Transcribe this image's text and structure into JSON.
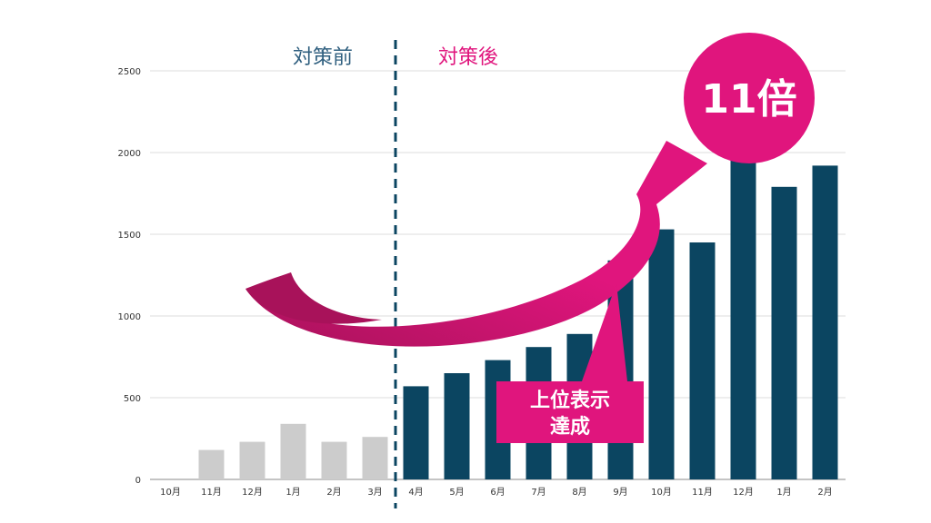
{
  "chart_data": {
    "type": "bar",
    "categories": [
      "10月",
      "11月",
      "12月",
      "1月",
      "2月",
      "3月",
      "4月",
      "5月",
      "6月",
      "7月",
      "8月",
      "9月",
      "10月",
      "11月",
      "12月",
      "1月",
      "2月"
    ],
    "values": [
      0,
      180,
      230,
      340,
      230,
      260,
      570,
      650,
      730,
      810,
      890,
      1340,
      1530,
      1450,
      1990,
      1790,
      1920
    ],
    "series_groups": [
      {
        "label": "対策前",
        "start": 0,
        "end": 5,
        "color": "#cccccc"
      },
      {
        "label": "対策後",
        "start": 6,
        "end": 16,
        "color": "#0b4561"
      }
    ],
    "yticks": [
      0,
      500,
      1000,
      1500,
      2000,
      2500
    ],
    "ylim": [
      0,
      2500
    ],
    "grid": true,
    "title": "",
    "xlabel": "",
    "ylabel": ""
  },
  "annotations": {
    "before_label": "対策前",
    "after_label": "対策後",
    "multiplier": "11倍",
    "callout_line1": "上位表示",
    "callout_line2": "達成"
  },
  "colors": {
    "before": "#cccccc",
    "after": "#0b4561",
    "before_text": "#2f5f7f",
    "accent": "#e0157d",
    "arrow_dark": "#b0175f",
    "grid": "#dddddd",
    "divider": "#0b4561"
  }
}
